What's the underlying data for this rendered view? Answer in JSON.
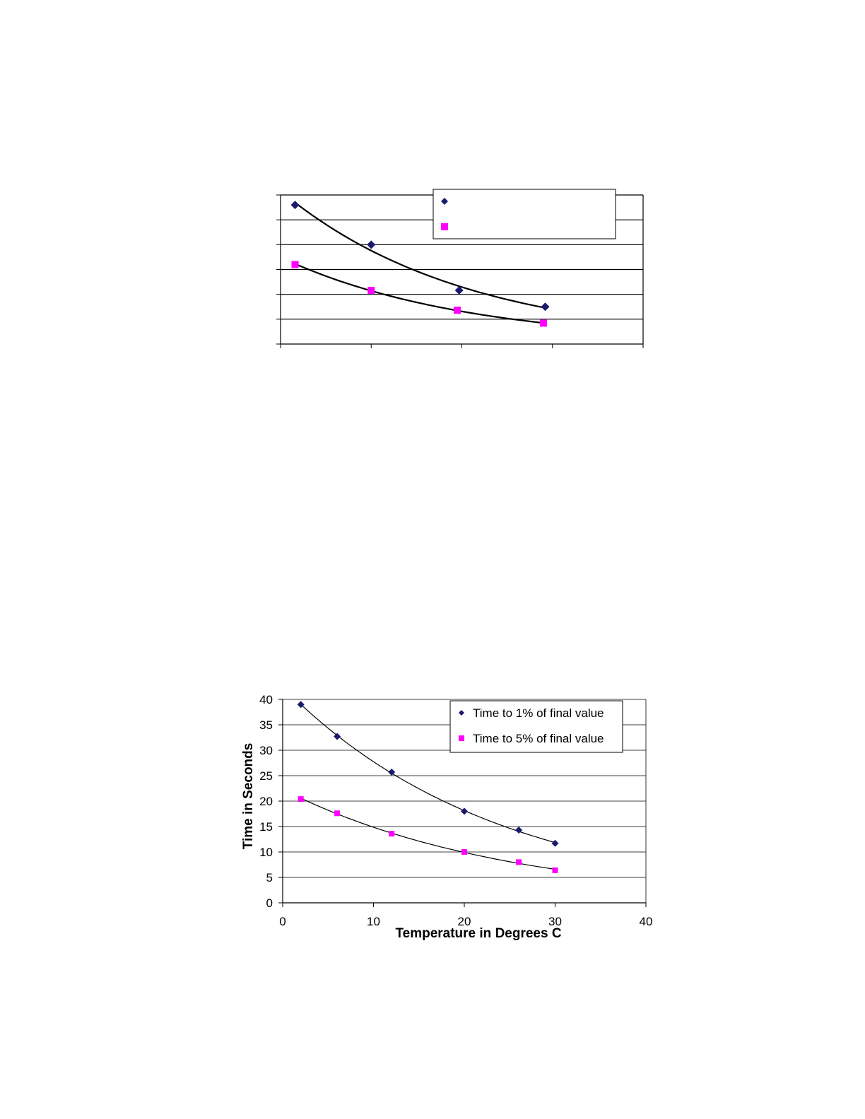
{
  "colors": {
    "series1": "#1a1a6e",
    "series1_marker_top": "#000080",
    "series2": "#ff00ff",
    "grid": "#000000",
    "trendline": "#000000"
  },
  "chart_data": [
    {
      "type": "scatter",
      "title": "",
      "xlabel": "",
      "ylabel": "",
      "xlim": [
        0,
        40
      ],
      "ylim": [
        0,
        30
      ],
      "xticks": [
        0,
        10,
        20,
        30,
        40
      ],
      "yticks": [
        0,
        5,
        10,
        15,
        20,
        25,
        30
      ],
      "tick_labels_visible": false,
      "grid": "horizontal",
      "legend_position": "top-right",
      "legend_labels": [
        "",
        ""
      ],
      "trendline": "fitted curve",
      "series": [
        {
          "x": [
            1.6,
            10,
            19.7,
            29.2
          ],
          "y": [
            28,
            20,
            10.8,
            7.5
          ],
          "marker": "diamond"
        },
        {
          "x": [
            1.6,
            10,
            19.5,
            29.0
          ],
          "y": [
            16,
            10.8,
            6.8,
            4.2
          ],
          "marker": "square"
        }
      ]
    },
    {
      "type": "scatter",
      "title": "",
      "xlabel": "Temperature in Degrees C",
      "ylabel": "Time in Seconds",
      "xlim": [
        0,
        40
      ],
      "ylim": [
        0,
        40
      ],
      "xticks": [
        "0",
        "10",
        "20",
        "30",
        "40"
      ],
      "yticks": [
        "0",
        "5",
        "10",
        "15",
        "20",
        "25",
        "30",
        "35",
        "40"
      ],
      "tick_labels_visible": true,
      "grid": "horizontal",
      "legend_position": "top-right",
      "legend_labels": [
        "Time to 1% of final value",
        "Time to 5% of final value"
      ],
      "trendline": "fitted curve",
      "series": [
        {
          "name": "Time to 1% of final value",
          "x": [
            2,
            6,
            12,
            20,
            26,
            30
          ],
          "y": [
            39,
            32.7,
            25.7,
            18,
            14.3,
            11.7
          ],
          "marker": "diamond"
        },
        {
          "name": "Time to 5% of final value",
          "x": [
            2,
            6,
            12,
            20,
            26,
            30
          ],
          "y": [
            20.4,
            17.6,
            13.6,
            10,
            8,
            6.4
          ],
          "marker": "square"
        }
      ]
    }
  ]
}
